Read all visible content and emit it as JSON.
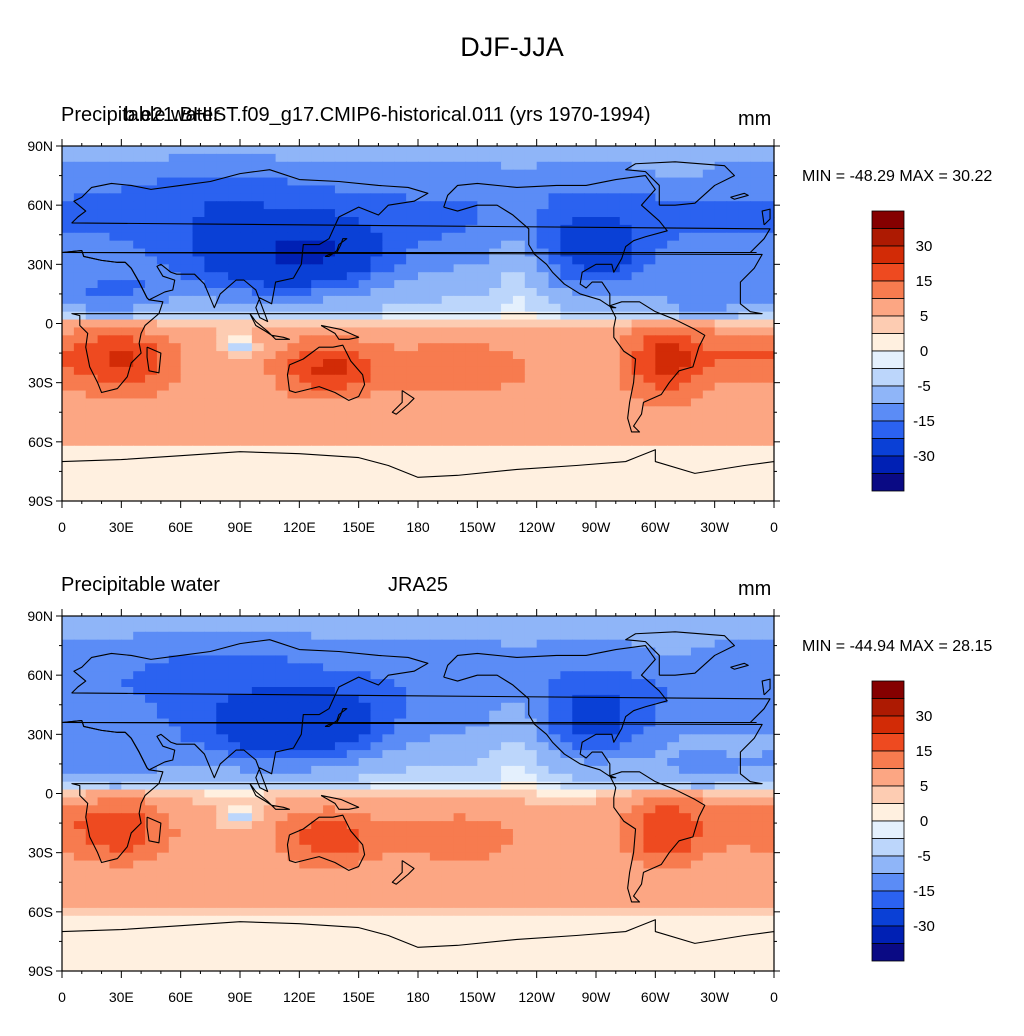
{
  "figure": {
    "title": "DJF-JJA"
  },
  "panels": [
    {
      "left_label": "Precipitable water",
      "center_label": "b.e21.BHIST.f09_g17.CMIP6-historical.011 (yrs 1970-1994)",
      "units": "mm",
      "stats": "MIN = -48.29 MAX =  30.22",
      "lat_ticks": [
        "90N",
        "60N",
        "30N",
        "0",
        "30S",
        "60S",
        "90S"
      ],
      "lon_ticks": [
        "0",
        "30E",
        "60E",
        "90E",
        "120E",
        "150E",
        "180",
        "150W",
        "120W",
        "90W",
        "60W",
        "30W",
        "0"
      ],
      "colorbar_labels": [
        "30",
        "15",
        "5",
        "0",
        "-5",
        "-15",
        "-30"
      ]
    },
    {
      "left_label": "Precipitable water",
      "center_label": "JRA25",
      "units": "mm",
      "stats": "MIN = -44.94 MAX =  28.15",
      "lat_ticks": [
        "90N",
        "60N",
        "30N",
        "0",
        "30S",
        "60S",
        "90S"
      ],
      "lon_ticks": [
        "0",
        "30E",
        "60E",
        "90E",
        "120E",
        "150E",
        "180",
        "150W",
        "120W",
        "90W",
        "60W",
        "30W",
        "0"
      ],
      "colorbar_labels": [
        "30",
        "15",
        "5",
        "0",
        "-5",
        "-15",
        "-30"
      ]
    }
  ],
  "colors": {
    "palette": [
      "#0a0a84",
      "#0020b4",
      "#0a40d6",
      "#2b62f0",
      "#5b8cf6",
      "#8fb5f8",
      "#bcd6fb",
      "#e4f0fd",
      "#fff0e0",
      "#fdccb2",
      "#fca683",
      "#f77b4f",
      "#ee4a20",
      "#d22b06",
      "#ad1a02",
      "#850000"
    ],
    "coast": "#000000",
    "frame": "#000000"
  }
}
